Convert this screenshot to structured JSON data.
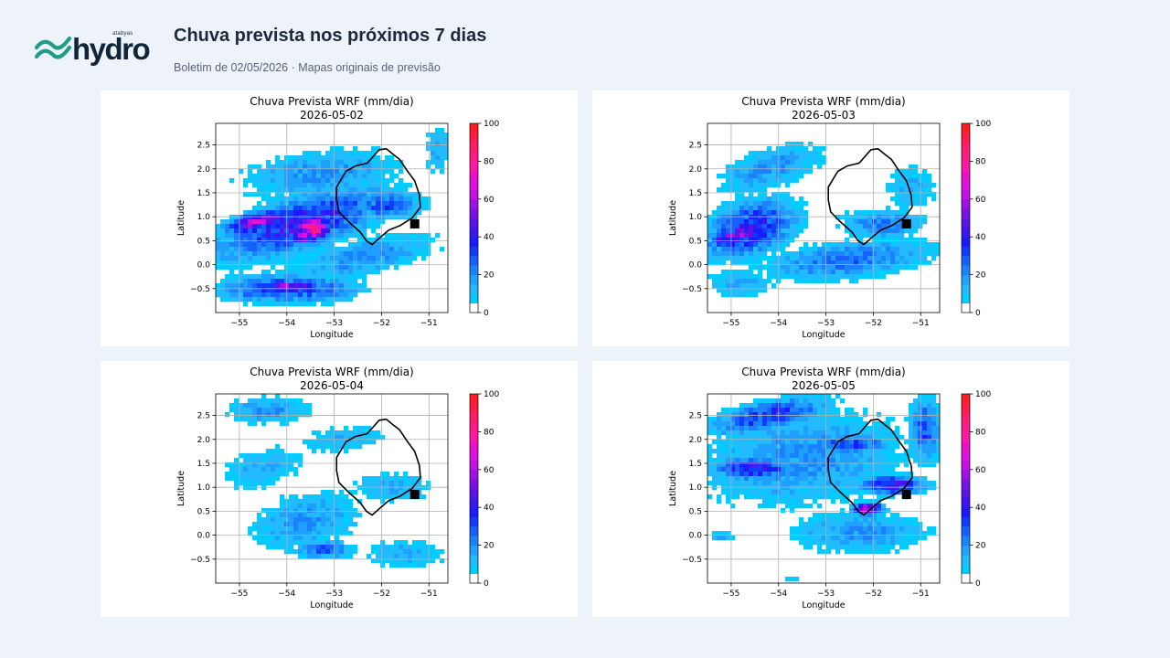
{
  "header": {
    "brand_small": "atabyas",
    "brand": "hydro",
    "title": "Chuva prevista nos próximos 7 dias",
    "subtitle": "Boletim de 02/05/2026 · Mapas originais de previsão"
  },
  "colors": {
    "background": "#eef2f9",
    "logo_green": "#1f9d8a",
    "logo_text": "#10243a",
    "basin_outline": "#000000",
    "outlet_marker": "#000000"
  },
  "colorbar": {
    "ticks": [
      "0",
      "20",
      "40",
      "60",
      "80",
      "100"
    ],
    "levels": [
      0,
      5,
      10,
      15,
      20,
      25,
      30,
      35,
      40,
      45,
      50,
      55,
      60,
      65,
      70,
      75,
      80,
      85,
      90,
      95,
      100
    ],
    "colors": [
      "#ffffff",
      "#00ccff",
      "#22bbff",
      "#1f9fff",
      "#1a82ff",
      "#1560ff",
      "#0f3cff",
      "#1a1aff",
      "#3d16ef",
      "#5a14e8",
      "#7a12e8",
      "#a010e8",
      "#c210e6",
      "#e00fe0",
      "#f00fc8",
      "#ff18a8",
      "#ff1a8a",
      "#ff1c6c",
      "#ff1c48",
      "#ff1c24"
    ]
  },
  "axes": {
    "xlabel": "Longitude",
    "ylabel": "Latitude",
    "xticks": [
      "−55",
      "−54",
      "−53",
      "−52",
      "−51"
    ],
    "yticks": [
      "2.5",
      "2.0",
      "1.5",
      "1.0",
      "0.5",
      "0.0",
      "−0.5"
    ]
  },
  "chart_data": [
    {
      "type": "heatmap",
      "title": "Chuva Prevista WRF (mm/dia)",
      "date": "2026-05-02",
      "xlim": [
        -55.5,
        -50.6
      ],
      "ylim": [
        -1.0,
        2.95
      ],
      "unit": "mm/dia",
      "outlet": {
        "lon": -51.3,
        "lat": 0.85
      },
      "rain_fields": [
        {
          "lon": -53.7,
          "lat": 0.85,
          "rx": 1.9,
          "ry": 0.55,
          "tilt": 0.3,
          "value": 40
        },
        {
          "lon": -53.5,
          "lat": 0.75,
          "rx": 0.5,
          "ry": 0.28,
          "tilt": 0.3,
          "value": 75
        },
        {
          "lon": -54.6,
          "lat": 0.9,
          "rx": 0.7,
          "ry": 0.2,
          "tilt": 0.2,
          "value": 60
        },
        {
          "lon": -53.3,
          "lat": 1.9,
          "rx": 1.8,
          "ry": 0.5,
          "tilt": 0.1,
          "value": 20
        },
        {
          "lon": -54.0,
          "lat": -0.5,
          "rx": 1.5,
          "ry": 0.3,
          "tilt": 0.0,
          "value": 35
        },
        {
          "lon": -53.9,
          "lat": -0.45,
          "rx": 0.6,
          "ry": 0.12,
          "tilt": 0.0,
          "value": 55
        },
        {
          "lon": -51.9,
          "lat": 1.25,
          "rx": 0.8,
          "ry": 0.3,
          "tilt": 0.0,
          "value": 30
        },
        {
          "lon": -52.4,
          "lat": 0.15,
          "rx": 1.7,
          "ry": 0.4,
          "tilt": 0.2,
          "value": 20
        },
        {
          "lon": -50.8,
          "lat": 2.4,
          "rx": 0.3,
          "ry": 0.6,
          "tilt": 0.0,
          "value": 15
        }
      ]
    },
    {
      "type": "heatmap",
      "title": "Chuva Prevista WRF (mm/dia)",
      "date": "2026-05-03",
      "xlim": [
        -55.5,
        -50.6
      ],
      "ylim": [
        -1.0,
        2.95
      ],
      "unit": "mm/dia",
      "outlet": {
        "lon": -51.3,
        "lat": 0.85
      },
      "rain_fields": [
        {
          "lon": -54.6,
          "lat": 0.75,
          "rx": 1.0,
          "ry": 0.55,
          "tilt": 0.3,
          "value": 40
        },
        {
          "lon": -54.9,
          "lat": 0.6,
          "rx": 0.5,
          "ry": 0.2,
          "tilt": 0.3,
          "value": 60
        },
        {
          "lon": -54.2,
          "lat": 2.0,
          "rx": 1.2,
          "ry": 0.45,
          "tilt": 0.3,
          "value": 20
        },
        {
          "lon": -52.5,
          "lat": 0.1,
          "rx": 1.9,
          "ry": 0.4,
          "tilt": 0.1,
          "value": 25
        },
        {
          "lon": -51.8,
          "lat": 0.85,
          "rx": 0.9,
          "ry": 0.3,
          "tilt": 0.0,
          "value": 25
        },
        {
          "lon": -51.2,
          "lat": 1.6,
          "rx": 0.6,
          "ry": 0.5,
          "tilt": 0.0,
          "value": 15
        },
        {
          "lon": -54.8,
          "lat": -0.4,
          "rx": 0.8,
          "ry": 0.35,
          "tilt": 0.0,
          "value": 15
        }
      ]
    },
    {
      "type": "heatmap",
      "title": "Chuva Prevista WRF (mm/dia)",
      "date": "2026-05-04",
      "xlim": [
        -55.5,
        -50.6
      ],
      "ylim": [
        -1.0,
        2.95
      ],
      "unit": "mm/dia",
      "outlet": {
        "lon": -51.3,
        "lat": 0.85
      },
      "rain_fields": [
        {
          "lon": -54.4,
          "lat": 2.6,
          "rx": 0.9,
          "ry": 0.3,
          "tilt": 0.0,
          "value": 20
        },
        {
          "lon": -54.5,
          "lat": 1.4,
          "rx": 1.0,
          "ry": 0.45,
          "tilt": 0.2,
          "value": 15
        },
        {
          "lon": -53.6,
          "lat": 0.3,
          "rx": 1.2,
          "ry": 0.6,
          "tilt": 0.2,
          "value": 20
        },
        {
          "lon": -53.2,
          "lat": -0.3,
          "rx": 0.6,
          "ry": 0.2,
          "tilt": 0.0,
          "value": 30
        },
        {
          "lon": -52.8,
          "lat": 2.0,
          "rx": 1.0,
          "ry": 0.3,
          "tilt": 0.1,
          "value": 15
        },
        {
          "lon": -51.8,
          "lat": 1.0,
          "rx": 1.0,
          "ry": 0.35,
          "tilt": 0.0,
          "value": 15
        },
        {
          "lon": -51.5,
          "lat": -0.4,
          "rx": 0.9,
          "ry": 0.35,
          "tilt": 0.0,
          "value": 15
        }
      ]
    },
    {
      "type": "heatmap",
      "title": "Chuva Prevista WRF (mm/dia)",
      "date": "2026-05-05",
      "xlim": [
        -55.5,
        -50.6
      ],
      "ylim": [
        -1.0,
        2.95
      ],
      "unit": "mm/dia",
      "outlet": {
        "lon": -51.3,
        "lat": 0.85
      },
      "rain_fields": [
        {
          "lon": -53.5,
          "lat": 1.6,
          "rx": 2.3,
          "ry": 1.05,
          "tilt": 0.1,
          "value": 20
        },
        {
          "lon": -54.2,
          "lat": 2.5,
          "rx": 1.3,
          "ry": 0.3,
          "tilt": 0.2,
          "value": 35
        },
        {
          "lon": -54.5,
          "lat": 1.4,
          "rx": 0.9,
          "ry": 0.25,
          "tilt": 0.0,
          "value": 40
        },
        {
          "lon": -52.5,
          "lat": 1.9,
          "rx": 0.8,
          "ry": 0.2,
          "tilt": 0.0,
          "value": 35
        },
        {
          "lon": -51.6,
          "lat": 1.05,
          "rx": 0.7,
          "ry": 0.2,
          "tilt": 0.0,
          "value": 45
        },
        {
          "lon": -52.1,
          "lat": 0.55,
          "rx": 0.3,
          "ry": 0.12,
          "tilt": 0.0,
          "value": 70
        },
        {
          "lon": -52.3,
          "lat": 0.05,
          "rx": 1.5,
          "ry": 0.45,
          "tilt": 0.0,
          "value": 20
        },
        {
          "lon": -50.9,
          "lat": 2.2,
          "rx": 0.35,
          "ry": 0.7,
          "tilt": 0.0,
          "value": 30
        },
        {
          "lon": -55.2,
          "lat": -0.02,
          "rx": 0.25,
          "ry": 0.07,
          "tilt": 0.0,
          "value": 25
        },
        {
          "lon": -53.7,
          "lat": -0.95,
          "rx": 0.3,
          "ry": 0.05,
          "tilt": 0.0,
          "value": 15
        }
      ]
    }
  ]
}
